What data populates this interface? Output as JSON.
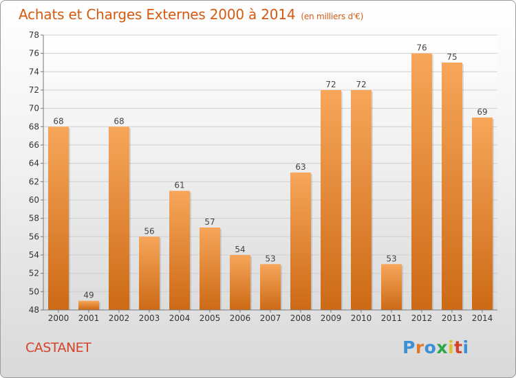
{
  "title": "Achats et Charges Externes 2000 à 2014",
  "unit_label": "(en milliers d'€)",
  "place": "CASTANET",
  "brand": "Proxiti",
  "colors": {
    "title": "#d45a12",
    "bar_top": "#f7a65a",
    "bar_bottom": "#cc6a16",
    "place": "#d4422a",
    "brand_letters": [
      "#3a8fd6",
      "#e0782a",
      "#3a8fd6",
      "#2aa84a",
      "#e0c02a",
      "#d4422a",
      "#3a8fd6"
    ]
  },
  "chart_data": {
    "type": "bar",
    "categories": [
      "2000",
      "2001",
      "2002",
      "2003",
      "2004",
      "2005",
      "2006",
      "2007",
      "2008",
      "2009",
      "2010",
      "2011",
      "2012",
      "2013",
      "2014"
    ],
    "values": [
      68,
      49,
      68,
      56,
      61,
      57,
      54,
      53,
      63,
      72,
      72,
      53,
      76,
      75,
      69
    ],
    "ylim": [
      48,
      78
    ],
    "yticks": [
      48,
      50,
      52,
      54,
      56,
      58,
      60,
      62,
      64,
      66,
      68,
      70,
      72,
      74,
      76,
      78
    ],
    "grid": true,
    "data_labels": true
  }
}
